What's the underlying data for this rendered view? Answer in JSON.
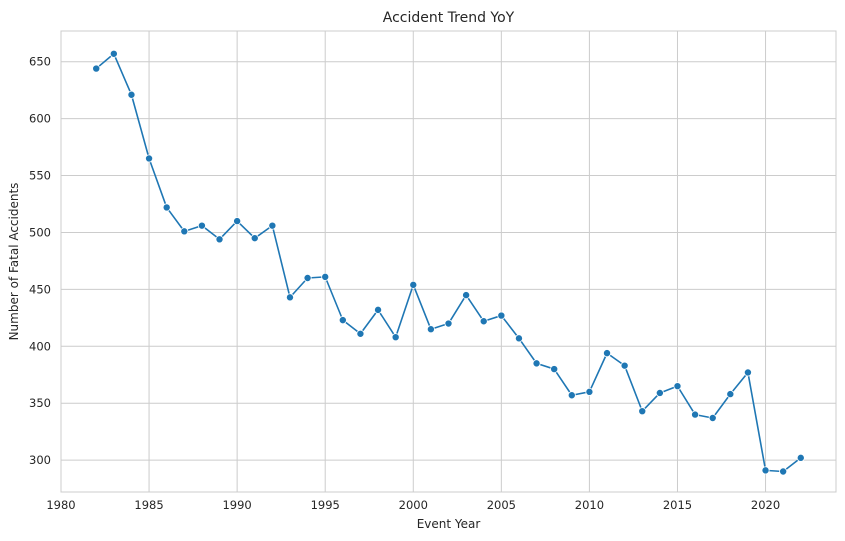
{
  "chart_data": {
    "type": "line",
    "title": "Accident Trend YoY",
    "xlabel": "Event Year",
    "ylabel": "Number of Fatal Accidents",
    "xlim": [
      1980,
      2024
    ],
    "ylim": [
      272,
      677
    ],
    "x_ticks": [
      1980,
      1985,
      1990,
      1995,
      2000,
      2005,
      2010,
      2015,
      2020
    ],
    "y_ticks": [
      300,
      350,
      400,
      450,
      500,
      550,
      600,
      650
    ],
    "grid": true,
    "line_color": "#1f77b4",
    "marker": "circle",
    "series": [
      {
        "x": [
          1982,
          1983,
          1984,
          1985,
          1986,
          1987,
          1988,
          1989,
          1990,
          1991,
          1992,
          1993,
          1994,
          1995,
          1996,
          1997,
          1998,
          1999,
          2000,
          2001,
          2002,
          2003,
          2004,
          2005,
          2006,
          2007,
          2008,
          2009,
          2010,
          2011,
          2012,
          2013,
          2014,
          2015,
          2016,
          2017,
          2018,
          2019,
          2020,
          2021,
          2022
        ],
        "values": [
          644,
          657,
          621,
          565,
          522,
          501,
          506,
          494,
          510,
          495,
          506,
          443,
          460,
          461,
          423,
          411,
          432,
          408,
          454,
          415,
          420,
          445,
          422,
          427,
          407,
          385,
          380,
          357,
          360,
          394,
          383,
          343,
          359,
          365,
          340,
          337,
          358,
          377,
          291,
          290,
          302
        ]
      }
    ]
  }
}
